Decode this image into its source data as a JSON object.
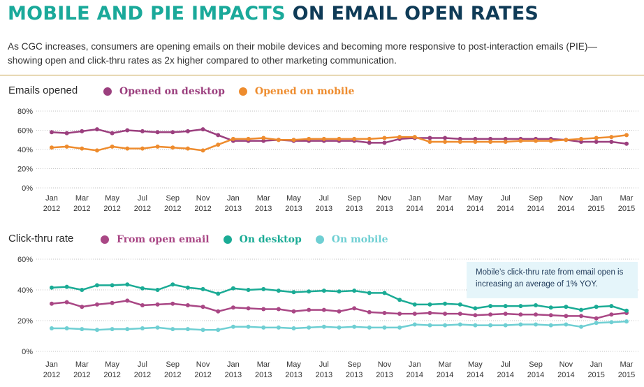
{
  "header": {
    "title_part1": "MOBILE AND PIE IMPACTS",
    "title_part2": "ON EMAIL OPEN RATES",
    "subtitle": "As CGC increases, consumers are opening emails on their mobile devices and becoming more responsive to post-interaction emails (PIE)—showing open and click-thru rates as 2x higher compared to other marketing communication."
  },
  "note": "Mobile’s click-thru rate from email open is increasing an average of 1% YOY.",
  "chart_data": [
    {
      "type": "line",
      "title": "Emails opened",
      "ylim": [
        0,
        80
      ],
      "yticks": [
        "0%",
        "20%",
        "40%",
        "60%",
        "80%"
      ],
      "x_tick_labels": [
        [
          "Jan",
          "2012"
        ],
        [
          "Mar",
          "2012"
        ],
        [
          "May",
          "2012"
        ],
        [
          "Jul",
          "2012"
        ],
        [
          "Sep",
          "2012"
        ],
        [
          "Nov",
          "2012"
        ],
        [
          "Jan",
          "2013"
        ],
        [
          "Mar",
          "2013"
        ],
        [
          "May",
          "2013"
        ],
        [
          "Jul",
          "2013"
        ],
        [
          "Sep",
          "2013"
        ],
        [
          "Nov",
          "2013"
        ],
        [
          "Jan",
          "2014"
        ],
        [
          "Mar",
          "2014"
        ],
        [
          "May",
          "2014"
        ],
        [
          "Jul",
          "2014"
        ],
        [
          "Sep",
          "2014"
        ],
        [
          "Nov",
          "2014"
        ],
        [
          "Jan",
          "2015"
        ],
        [
          "Mar",
          "2015"
        ]
      ],
      "grid": true,
      "legend": "top",
      "series": [
        {
          "name": "Opened on desktop",
          "color": "#9b3f7e",
          "values": [
            58,
            57,
            59,
            61,
            57,
            60,
            59,
            58,
            58,
            59,
            61,
            55,
            49,
            49,
            49,
            50,
            49,
            49,
            49,
            49,
            49,
            47,
            47,
            51,
            52,
            52,
            52,
            51,
            51,
            51,
            51,
            51,
            51,
            51,
            50,
            48,
            48,
            48,
            46
          ]
        },
        {
          "name": "Opened on mobile",
          "color": "#ee8c2e",
          "values": [
            42,
            43,
            41,
            39,
            43,
            41,
            41,
            43,
            42,
            41,
            39,
            45,
            51,
            51,
            52,
            50,
            50,
            51,
            51,
            51,
            51,
            51,
            52,
            53,
            53,
            48,
            48,
            48,
            48,
            48,
            48,
            49,
            49,
            49,
            50,
            51,
            52,
            53,
            55
          ]
        }
      ]
    },
    {
      "type": "line",
      "title": "Click-thru rate",
      "ylim": [
        0,
        60
      ],
      "yticks": [
        "0%",
        "20%",
        "40%",
        "60%"
      ],
      "x_tick_labels": [
        [
          "Jan",
          "2012"
        ],
        [
          "Mar",
          "2012"
        ],
        [
          "May",
          "2012"
        ],
        [
          "Jul",
          "2012"
        ],
        [
          "Sep",
          "2012"
        ],
        [
          "Nov",
          "2012"
        ],
        [
          "Jan",
          "2013"
        ],
        [
          "Mar",
          "2013"
        ],
        [
          "May",
          "2013"
        ],
        [
          "Jul",
          "2013"
        ],
        [
          "Sep",
          "2013"
        ],
        [
          "Nov",
          "2013"
        ],
        [
          "Jan",
          "2014"
        ],
        [
          "Mar",
          "2014"
        ],
        [
          "May",
          "2014"
        ],
        [
          "Jul",
          "2014"
        ],
        [
          "Sep",
          "2014"
        ],
        [
          "Nov",
          "2014"
        ],
        [
          "Jan",
          "2015"
        ],
        [
          "Mar",
          "2015"
        ]
      ],
      "grid": true,
      "legend": "top",
      "series": [
        {
          "name": "From open email",
          "color": "#a94785",
          "values": [
            31,
            32,
            29,
            30.5,
            31.5,
            33,
            30,
            30.5,
            31,
            30,
            29,
            26,
            28.5,
            28,
            27.5,
            27.5,
            26,
            27,
            27,
            26,
            28,
            25.5,
            25,
            24.5,
            24.5,
            25,
            24.5,
            24.5,
            23.5,
            24,
            24.5,
            24,
            24,
            23.5,
            23,
            23,
            21.5,
            24,
            25
          ]
        },
        {
          "name": "On desktop",
          "color": "#1aab95",
          "values": [
            41.5,
            42,
            40,
            43,
            43,
            43.5,
            41,
            40,
            43.5,
            41.5,
            40.5,
            37.5,
            41,
            40,
            40.5,
            39.5,
            38.5,
            39,
            39.5,
            39,
            39.5,
            38,
            38,
            33.5,
            30.5,
            30.5,
            31,
            30.5,
            28,
            29.5,
            29.5,
            29.5,
            30,
            28.5,
            29,
            27,
            29,
            29.5,
            26.5
          ]
        },
        {
          "name": "On mobile",
          "color": "#6fcfd3",
          "values": [
            15,
            15,
            14.5,
            14,
            14.5,
            14.5,
            15,
            15.5,
            14.5,
            14.5,
            14,
            14,
            16,
            16,
            15.5,
            15.5,
            15,
            15.5,
            16,
            15.5,
            16,
            15.5,
            15.5,
            15.5,
            17.5,
            17,
            17,
            17.5,
            17,
            17,
            17,
            17.5,
            17.5,
            17,
            17.5,
            16,
            18.5,
            19,
            19.5
          ]
        }
      ]
    }
  ]
}
